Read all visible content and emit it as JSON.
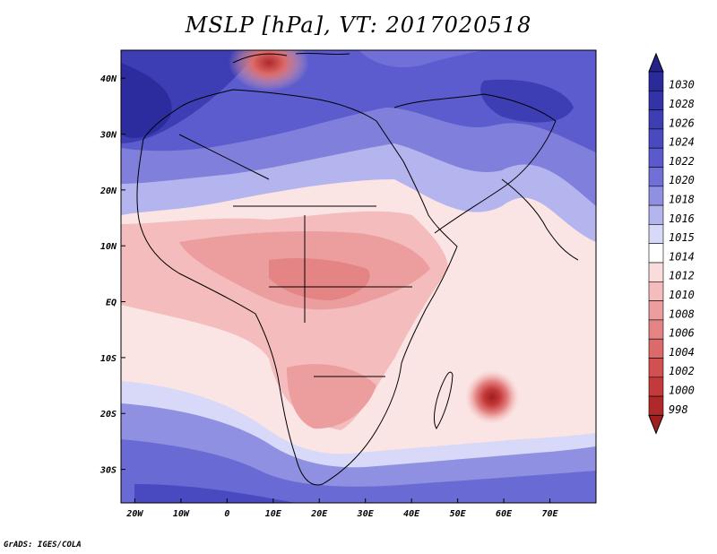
{
  "title": "MSLP [hPa], VT: 2017020518",
  "credit": "GrADS: IGES/COLA",
  "map": {
    "projection": "lat-lon",
    "lon_range": [
      -23,
      80
    ],
    "lat_range": [
      -36,
      45
    ],
    "lon_ticks": [
      {
        "value": -20,
        "label": "20W"
      },
      {
        "value": -10,
        "label": "10W"
      },
      {
        "value": 0,
        "label": "0"
      },
      {
        "value": 10,
        "label": "10E"
      },
      {
        "value": 20,
        "label": "20E"
      },
      {
        "value": 30,
        "label": "30E"
      },
      {
        "value": 40,
        "label": "40E"
      },
      {
        "value": 50,
        "label": "50E"
      },
      {
        "value": 60,
        "label": "60E"
      },
      {
        "value": 70,
        "label": "70E"
      }
    ],
    "lat_ticks": [
      {
        "value": 40,
        "label": "40N"
      },
      {
        "value": 30,
        "label": "30N"
      },
      {
        "value": 20,
        "label": "20N"
      },
      {
        "value": 10,
        "label": "10N"
      },
      {
        "value": 0,
        "label": "EQ"
      },
      {
        "value": -10,
        "label": "10S"
      },
      {
        "value": -20,
        "label": "20S"
      },
      {
        "value": -30,
        "label": "30S"
      }
    ]
  },
  "colorbar": {
    "levels": [
      {
        "label": "1030",
        "color": "#2a2a9a"
      },
      {
        "label": "1028",
        "color": "#3333a8"
      },
      {
        "label": "1026",
        "color": "#3e3eb4"
      },
      {
        "label": "1024",
        "color": "#4a4ac0"
      },
      {
        "label": "1022",
        "color": "#5a5acc"
      },
      {
        "label": "1020",
        "color": "#7070d8"
      },
      {
        "label": "1018",
        "color": "#9090e2"
      },
      {
        "label": "1016",
        "color": "#b4b4ee"
      },
      {
        "label": "1015",
        "color": "#d8d8f8"
      },
      {
        "label": "1014",
        "color": "#ffffff"
      },
      {
        "label": "1012",
        "color": "#fadcdc"
      },
      {
        "label": "1010",
        "color": "#f4bcbc"
      },
      {
        "label": "1008",
        "color": "#ec9e9e"
      },
      {
        "label": "1006",
        "color": "#e48484"
      },
      {
        "label": "1004",
        "color": "#dc6a6a"
      },
      {
        "label": "1002",
        "color": "#d25050"
      },
      {
        "label": "1000",
        "color": "#c43a3a"
      },
      {
        "label": "998",
        "color": "#b02828"
      }
    ],
    "top_arrow_color": "#23238a",
    "bottom_arrow_color": "#a01e1e"
  },
  "pressure_features": [
    {
      "name": "low",
      "lon": 58,
      "lat": -18,
      "value_hPa": 998
    },
    {
      "name": "low",
      "lon": 9,
      "lat": 42,
      "value_hPa": 1004
    },
    {
      "name": "high",
      "lon": -18,
      "lat": 38,
      "value_hPa": 1028
    },
    {
      "name": "high",
      "lon": 65,
      "lat": 37,
      "value_hPa": 1026
    }
  ]
}
